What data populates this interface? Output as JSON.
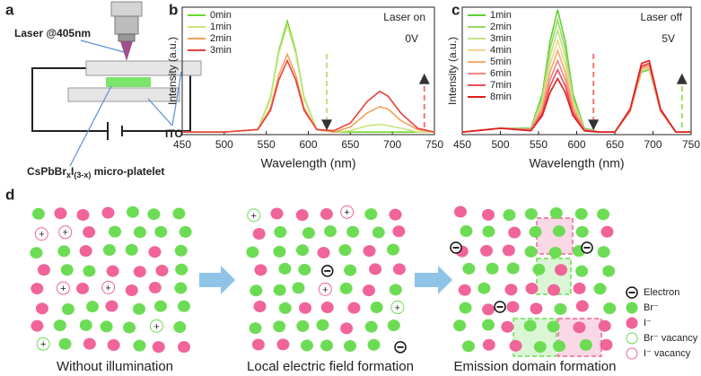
{
  "panel_labels": [
    "a",
    "b",
    "c",
    "d"
  ],
  "schematic": {
    "laser": "Laser @405nm",
    "ito": "ITO",
    "platelet": [
      "CsPbBr",
      "x",
      "I",
      "(3-x)",
      " micro-platelet"
    ]
  },
  "chart_data": [
    {
      "type": "line",
      "xlabel": "Wavelength (nm)",
      "ylabel": "Intensity (a.u.)",
      "annotations": [
        "Laser on",
        "0V"
      ],
      "legend": "upper-left",
      "x": [
        450,
        500,
        540,
        555,
        565,
        575,
        585,
        595,
        610,
        630,
        650,
        670,
        685,
        695,
        710,
        730,
        750
      ],
      "xlim": [
        450,
        750
      ],
      "xticks": [
        450,
        500,
        550,
        600,
        650,
        700,
        750
      ],
      "ylim": [
        0,
        1
      ],
      "series": [
        {
          "name": "0min",
          "color": "#6fd62e",
          "values": [
            0.02,
            0.02,
            0.04,
            0.29,
            0.66,
            0.89,
            0.66,
            0.29,
            0.04,
            0.02,
            0.02,
            0.02,
            0.02,
            0.02,
            0.02,
            0.02,
            0.02
          ]
        },
        {
          "name": "1min",
          "color": "#c9e47e",
          "values": [
            0.02,
            0.02,
            0.04,
            0.28,
            0.64,
            0.86,
            0.64,
            0.28,
            0.04,
            0.02,
            0.03,
            0.07,
            0.08,
            0.07,
            0.05,
            0.02,
            0.02
          ]
        },
        {
          "name": "2min",
          "color": "#f2a25a",
          "values": [
            0.02,
            0.02,
            0.04,
            0.21,
            0.47,
            0.63,
            0.47,
            0.21,
            0.04,
            0.02,
            0.06,
            0.17,
            0.22,
            0.2,
            0.11,
            0.04,
            0.02
          ]
        },
        {
          "name": "3min",
          "color": "#e8413c",
          "values": [
            0.02,
            0.02,
            0.04,
            0.19,
            0.43,
            0.58,
            0.43,
            0.19,
            0.04,
            0.03,
            0.09,
            0.26,
            0.34,
            0.3,
            0.17,
            0.05,
            0.02
          ]
        }
      ]
    },
    {
      "type": "line",
      "xlabel": "Wavelength (nm)",
      "ylabel": "Intensity (a.u.)",
      "annotations": [
        "Laser off",
        "5V"
      ],
      "legend": "upper-left",
      "x": [
        450,
        500,
        540,
        555,
        565,
        575,
        585,
        595,
        610,
        630,
        650,
        670,
        685,
        695,
        710,
        730,
        750
      ],
      "xlim": [
        450,
        750
      ],
      "xticks": [
        450,
        500,
        550,
        600,
        650,
        700,
        750
      ],
      "ylim": [
        0,
        1
      ],
      "series": [
        {
          "name": "1min",
          "color": "#5fcf35",
          "values": [
            0.02,
            0.05,
            0.05,
            0.32,
            0.73,
            0.98,
            0.73,
            0.32,
            0.05,
            0.02,
            0.02,
            0.18,
            0.49,
            0.51,
            0.18,
            0.02,
            0.02
          ]
        },
        {
          "name": "2min",
          "color": "#96d865",
          "values": [
            0.02,
            0.05,
            0.04,
            0.29,
            0.67,
            0.9,
            0.67,
            0.29,
            0.04,
            0.02,
            0.02,
            0.18,
            0.5,
            0.52,
            0.18,
            0.02,
            0.02
          ]
        },
        {
          "name": "3min",
          "color": "#c7e28a",
          "values": [
            0.02,
            0.05,
            0.04,
            0.27,
            0.61,
            0.82,
            0.61,
            0.27,
            0.04,
            0.02,
            0.02,
            0.18,
            0.5,
            0.52,
            0.18,
            0.02,
            0.02
          ]
        },
        {
          "name": "4min",
          "color": "#f1d48e",
          "values": [
            0.02,
            0.05,
            0.04,
            0.24,
            0.55,
            0.74,
            0.55,
            0.24,
            0.04,
            0.02,
            0.02,
            0.18,
            0.51,
            0.53,
            0.18,
            0.02,
            0.02
          ]
        },
        {
          "name": "5min",
          "color": "#f4ad6c",
          "values": [
            0.02,
            0.05,
            0.04,
            0.22,
            0.49,
            0.66,
            0.49,
            0.22,
            0.04,
            0.02,
            0.02,
            0.19,
            0.52,
            0.54,
            0.19,
            0.02,
            0.02
          ]
        },
        {
          "name": "6min",
          "color": "#f08585",
          "values": [
            0.02,
            0.05,
            0.04,
            0.19,
            0.43,
            0.58,
            0.43,
            0.19,
            0.04,
            0.02,
            0.02,
            0.19,
            0.53,
            0.55,
            0.19,
            0.02,
            0.02
          ]
        },
        {
          "name": "7min",
          "color": "#e8505e",
          "values": [
            0.02,
            0.05,
            0.03,
            0.17,
            0.38,
            0.51,
            0.38,
            0.17,
            0.03,
            0.02,
            0.02,
            0.19,
            0.54,
            0.56,
            0.19,
            0.02,
            0.02
          ]
        },
        {
          "name": "8min",
          "color": "#e01e1e",
          "values": [
            0.02,
            0.05,
            0.03,
            0.15,
            0.33,
            0.44,
            0.33,
            0.15,
            0.03,
            0.02,
            0.02,
            0.2,
            0.56,
            0.58,
            0.2,
            0.02,
            0.02
          ]
        }
      ]
    }
  ],
  "lattice": {
    "captions": [
      "Without illumination",
      "Local electric field formation",
      "Emission domain formation"
    ],
    "legend": [
      "Electron",
      "Br⁻",
      "I⁻",
      "Br⁻ vacancy",
      "I⁻ vacancy"
    ]
  }
}
